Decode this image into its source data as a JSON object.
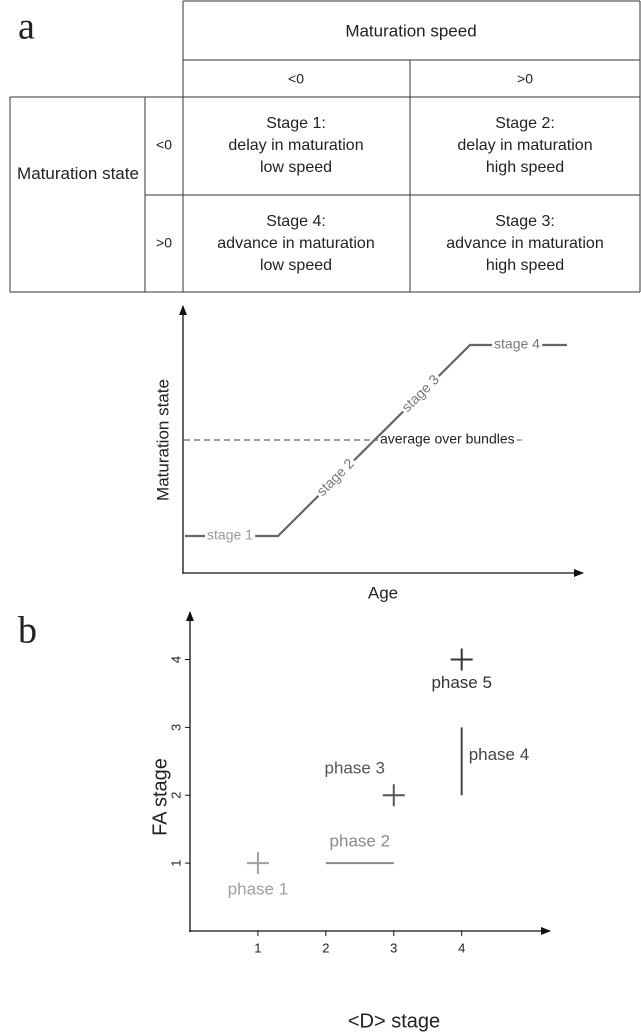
{
  "panel_labels": [
    "a",
    "b"
  ],
  "table": {
    "column_header": "Maturation speed",
    "column_values": [
      "<0",
      ">0"
    ],
    "row_header": "Maturation state",
    "row_values": [
      "<0",
      ">0"
    ],
    "cells": [
      [
        [
          "Stage 1:",
          "delay in maturation",
          "low speed"
        ],
        [
          "Stage 2:",
          "delay in maturation",
          "high speed"
        ]
      ],
      [
        [
          "Stage 4:",
          "advance in maturation",
          "low speed"
        ],
        [
          "Stage 3:",
          "advance in maturation",
          "high speed"
        ]
      ]
    ]
  },
  "diagram": {
    "ylabel": "Maturation state",
    "xlabel": "Age",
    "stages": [
      "stage 1",
      "stage 2",
      "stage 3",
      "stage 4"
    ],
    "average": "average over bundles"
  },
  "chart_data": {
    "type": "scatter",
    "xlabel": "<D> stage",
    "ylabel": "FA stage",
    "xlim": [
      0,
      5.3
    ],
    "ylim": [
      0,
      4.7
    ],
    "xticks": [
      1,
      2,
      3,
      4
    ],
    "yticks": [
      1,
      2,
      3,
      4
    ],
    "series": [
      {
        "name": "phase 1",
        "color": "#a0a0a0",
        "x": [
          1,
          1
        ],
        "y": [
          1,
          1
        ]
      },
      {
        "name": "phase 2",
        "color": "#8a8a8a",
        "x": [
          2,
          3
        ],
        "y": [
          1,
          1
        ]
      },
      {
        "name": "phase 3",
        "color": "#555555",
        "x": [
          3,
          3
        ],
        "y": [
          2,
          2
        ]
      },
      {
        "name": "phase 4",
        "color": "#444444",
        "x": [
          4,
          4
        ],
        "y": [
          2,
          3
        ]
      },
      {
        "name": "phase 5",
        "color": "#333333",
        "x": [
          4,
          4
        ],
        "y": [
          4,
          4
        ]
      }
    ]
  }
}
